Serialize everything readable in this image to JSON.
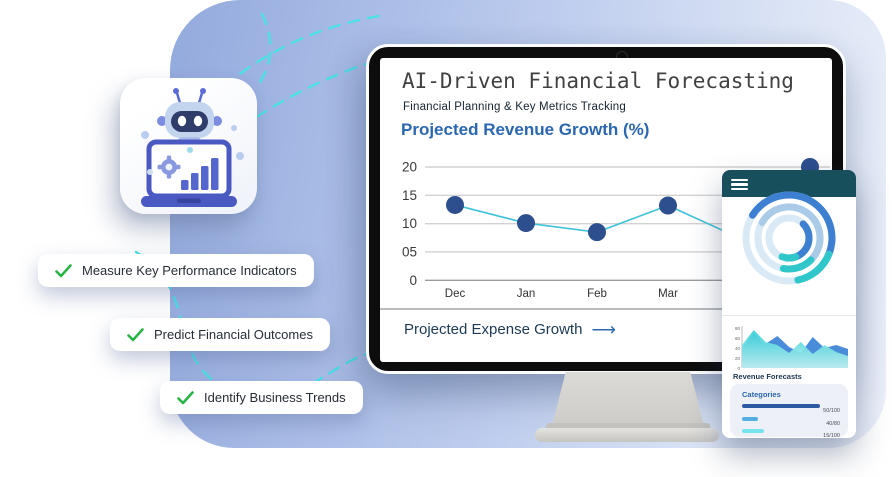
{
  "decor": {
    "dash_color": "#4ce1e7",
    "blob_gradient": [
      "#93aadd",
      "#bdccee",
      "#ecf0fa"
    ]
  },
  "features": {
    "check_color": "#29b347",
    "items": [
      {
        "label": "Measure Key Performance Indicators"
      },
      {
        "label": "Predict Financial Outcomes"
      },
      {
        "label": "Identify Business Trends"
      }
    ]
  },
  "monitor": {
    "title": "AI-Driven Financial Forecasting",
    "subtitle": "Financial Planning & Key Metrics Tracking",
    "chart_heading": "Projected Revenue Growth (%)",
    "footer_label": "Projected Expense Growth",
    "footer_arrow": "⟶"
  },
  "chart_data": [
    {
      "id": "revenue-growth",
      "type": "line",
      "title": "Projected Revenue Growth (%)",
      "categories": [
        "Dec",
        "Jan",
        "Feb",
        "Mar"
      ],
      "values": [
        13.3,
        10.1,
        8.5,
        13.2,
        7.5,
        20
      ],
      "points_partially_obscured_by_overlay": true,
      "ylim": [
        0,
        20
      ],
      "yticks": [
        "20",
        "15",
        "10",
        "05",
        "0"
      ],
      "grid": true,
      "line_color": "#3fc3da",
      "dot_color": "#2d4f8e"
    },
    {
      "id": "mini-area",
      "type": "area",
      "ylim": [
        0,
        80
      ],
      "yticks": [
        "80",
        "60",
        "40",
        "20",
        "0"
      ],
      "series": [
        {
          "name": "blue",
          "color": "#3f86d8",
          "values": [
            40,
            70,
            48,
            64,
            42,
            30,
            62,
            40,
            46,
            38
          ]
        },
        {
          "name": "teal",
          "color": "#35d0d6",
          "values": [
            46,
            76,
            52,
            46,
            30,
            52,
            28,
            46,
            32,
            24
          ]
        }
      ]
    },
    {
      "id": "category-bars",
      "type": "bar",
      "labels": [
        "50/100",
        "40/80",
        "15/100"
      ],
      "bar_colors": [
        "#2c5aa2",
        "#54aee0",
        "#74e4ef"
      ],
      "bar_pct": [
        83,
        17,
        23
      ]
    }
  ],
  "phone_panel": {
    "header_color": "#17505c",
    "section_title": "Revenue Forecasts",
    "categories_label": "Categories",
    "rings": {
      "pale": "#d9e9f5",
      "light_blue": "#a9cbe8",
      "blue": "#3d7fd0",
      "teal": "#2fc7c9"
    }
  }
}
